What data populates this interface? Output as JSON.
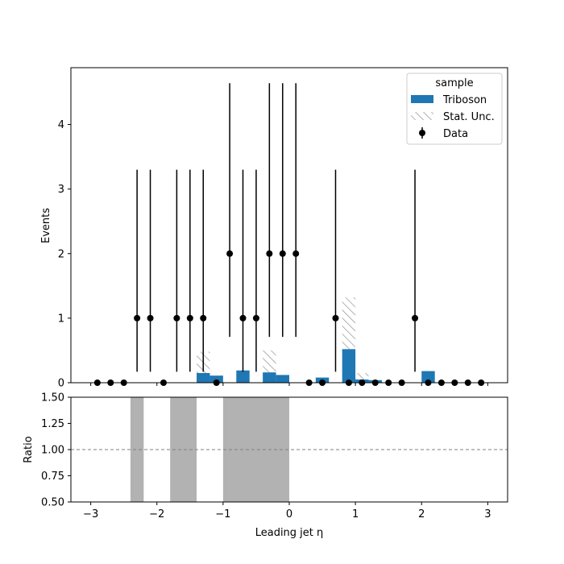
{
  "chart_data": [
    {
      "type": "bar",
      "panel": "main",
      "xlabel": "Leading jet  η",
      "ylabel": "Events",
      "xlim": [
        -3.3,
        3.3
      ],
      "ylim": [
        0,
        4.88
      ],
      "xticks": [
        -3,
        -2,
        -1,
        0,
        1,
        2,
        3
      ],
      "xtick_labels": [
        "−3",
        "−2",
        "−1",
        "0",
        "1",
        "2",
        "3"
      ],
      "yticks": [
        0,
        1,
        2,
        3,
        4
      ],
      "ytick_labels": [
        "0",
        "1",
        "2",
        "3",
        "4"
      ],
      "bin_width": 0.2,
      "legend": {
        "title": "sample",
        "placement": "top-right",
        "entries": [
          "Triboson",
          "Stat. Unc.",
          "Data"
        ]
      },
      "series": [
        {
          "name": "Triboson",
          "kind": "histogram",
          "color": "#1f77b4",
          "bins": [
            {
              "x": -1.3,
              "value": 0.15,
              "unc": 0.33
            },
            {
              "x": -1.1,
              "value": 0.11,
              "unc": 0.0
            },
            {
              "x": -0.7,
              "value": 0.19,
              "unc": 0.0
            },
            {
              "x": -0.3,
              "value": 0.16,
              "unc": 0.34
            },
            {
              "x": -0.1,
              "value": 0.12,
              "unc": 0.0
            },
            {
              "x": 0.5,
              "value": 0.08,
              "unc": 0.0
            },
            {
              "x": 0.9,
              "value": 0.52,
              "unc": 0.8
            },
            {
              "x": 1.1,
              "value": 0.05,
              "unc": 0.1
            },
            {
              "x": 1.3,
              "value": 0.04,
              "unc": 0.0
            },
            {
              "x": 2.1,
              "value": 0.18,
              "unc": 0.0
            }
          ]
        },
        {
          "name": "Stat. Unc.",
          "kind": "hatched-band",
          "color": "#808080"
        },
        {
          "name": "Data",
          "kind": "points-with-errors",
          "color": "#000000",
          "points": [
            {
              "x": -2.9,
              "y": 0
            },
            {
              "x": -2.7,
              "y": 0
            },
            {
              "x": -2.5,
              "y": 0
            },
            {
              "x": -2.3,
              "y": 1
            },
            {
              "x": -2.1,
              "y": 1
            },
            {
              "x": -1.9,
              "y": 0
            },
            {
              "x": -1.7,
              "y": 1
            },
            {
              "x": -1.5,
              "y": 1
            },
            {
              "x": -1.3,
              "y": 1
            },
            {
              "x": -1.1,
              "y": 0
            },
            {
              "x": -0.9,
              "y": 2
            },
            {
              "x": -0.7,
              "y": 1
            },
            {
              "x": -0.5,
              "y": 1
            },
            {
              "x": -0.3,
              "y": 2
            },
            {
              "x": -0.1,
              "y": 2
            },
            {
              "x": 0.1,
              "y": 2
            },
            {
              "x": 0.3,
              "y": 0
            },
            {
              "x": 0.5,
              "y": 0
            },
            {
              "x": 0.7,
              "y": 1
            },
            {
              "x": 0.9,
              "y": 0
            },
            {
              "x": 1.1,
              "y": 0
            },
            {
              "x": 1.3,
              "y": 0
            },
            {
              "x": 1.5,
              "y": 0
            },
            {
              "x": 1.7,
              "y": 0
            },
            {
              "x": 1.9,
              "y": 1
            },
            {
              "x": 2.1,
              "y": 0
            },
            {
              "x": 2.3,
              "y": 0
            },
            {
              "x": 2.5,
              "y": 0
            },
            {
              "x": 2.7,
              "y": 0
            },
            {
              "x": 2.9,
              "y": 0
            }
          ],
          "error_scale": {
            "0": [
              0,
              0
            ],
            "1": [
              0.83,
              2.3
            ],
            "2": [
              1.29,
              2.64
            ]
          }
        }
      ]
    },
    {
      "type": "bar",
      "panel": "ratio",
      "xlabel": "Leading jet  η",
      "ylabel": "Ratio",
      "xlim": [
        -3.3,
        3.3
      ],
      "ylim": [
        0.5,
        1.5
      ],
      "yticks": [
        0.5,
        0.75,
        1.0,
        1.25,
        1.5
      ],
      "ytick_labels": [
        "0.50",
        "0.75",
        "1.00",
        "1.25",
        "1.50"
      ],
      "reference_line": 1.0,
      "bands": [
        {
          "x0": -2.4,
          "x1": -2.2
        },
        {
          "x0": -1.8,
          "x1": -1.4
        },
        {
          "x0": -1.0,
          "x1": 0.0
        }
      ],
      "band_color": "#b2b2b2"
    }
  ]
}
